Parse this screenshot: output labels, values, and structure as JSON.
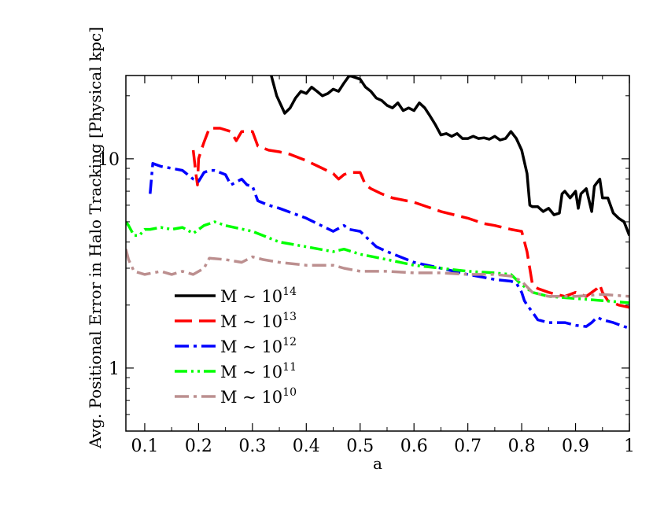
{
  "chart_data": {
    "type": "line",
    "title": "",
    "xlabel": "a",
    "ylabel": "Avg. Positional Error in Halo Tracking [Physical kpc]",
    "xlim": [
      0.065,
      1.0
    ],
    "ylim": [
      0.5,
      25
    ],
    "yscale": "log",
    "grid": false,
    "legend_position": "bottom-left",
    "x_ticks": [
      {
        "value": 0.1,
        "label": "0.1"
      },
      {
        "value": 0.2,
        "label": "0.2"
      },
      {
        "value": 0.3,
        "label": "0.3"
      },
      {
        "value": 0.4,
        "label": "0.4"
      },
      {
        "value": 0.5,
        "label": "0.5"
      },
      {
        "value": 0.6,
        "label": "0.6"
      },
      {
        "value": 0.7,
        "label": "0.7"
      },
      {
        "value": 0.8,
        "label": "0.8"
      },
      {
        "value": 0.9,
        "label": "0.9"
      },
      {
        "value": 1.0,
        "label": "1"
      }
    ],
    "y_ticks": [
      {
        "value": 1,
        "label": "1"
      },
      {
        "value": 10,
        "label": "10"
      }
    ],
    "series": [
      {
        "name_base": "M ~ 10",
        "name_exp": "14",
        "color": "#000000",
        "dash": "solid",
        "points": [
          [
            0.335,
            25
          ],
          [
            0.345,
            20
          ],
          [
            0.36,
            16.5
          ],
          [
            0.37,
            17.5
          ],
          [
            0.38,
            19.5
          ],
          [
            0.39,
            21
          ],
          [
            0.4,
            20.5
          ],
          [
            0.41,
            22
          ],
          [
            0.42,
            21
          ],
          [
            0.43,
            20
          ],
          [
            0.44,
            20.5
          ],
          [
            0.45,
            21.5
          ],
          [
            0.46,
            21
          ],
          [
            0.47,
            23
          ],
          [
            0.48,
            25
          ],
          [
            0.49,
            24.5
          ],
          [
            0.5,
            24
          ],
          [
            0.51,
            22
          ],
          [
            0.52,
            21
          ],
          [
            0.53,
            19.5
          ],
          [
            0.54,
            19
          ],
          [
            0.55,
            18
          ],
          [
            0.56,
            17.5
          ],
          [
            0.57,
            18.5
          ],
          [
            0.58,
            17
          ],
          [
            0.59,
            17.5
          ],
          [
            0.6,
            17
          ],
          [
            0.61,
            18.5
          ],
          [
            0.62,
            17.5
          ],
          [
            0.63,
            16
          ],
          [
            0.64,
            14.5
          ],
          [
            0.65,
            13
          ],
          [
            0.66,
            13.2
          ],
          [
            0.67,
            12.8
          ],
          [
            0.68,
            13.2
          ],
          [
            0.69,
            12.5
          ],
          [
            0.7,
            12.5
          ],
          [
            0.71,
            12.8
          ],
          [
            0.72,
            12.5
          ],
          [
            0.73,
            12.6
          ],
          [
            0.74,
            12.4
          ],
          [
            0.75,
            12.8
          ],
          [
            0.76,
            12.3
          ],
          [
            0.77,
            12.5
          ],
          [
            0.78,
            13.5
          ],
          [
            0.79,
            12.5
          ],
          [
            0.8,
            11
          ],
          [
            0.81,
            8.5
          ],
          [
            0.815,
            6
          ],
          [
            0.82,
            5.9
          ],
          [
            0.83,
            5.9
          ],
          [
            0.84,
            5.6
          ],
          [
            0.85,
            5.8
          ],
          [
            0.86,
            5.4
          ],
          [
            0.87,
            5.5
          ],
          [
            0.875,
            6.8
          ],
          [
            0.88,
            7
          ],
          [
            0.89,
            6.5
          ],
          [
            0.9,
            7
          ],
          [
            0.905,
            5.8
          ],
          [
            0.91,
            6.8
          ],
          [
            0.92,
            7.2
          ],
          [
            0.93,
            5.6
          ],
          [
            0.935,
            7.4
          ],
          [
            0.94,
            7.7
          ],
          [
            0.945,
            8
          ],
          [
            0.95,
            6.5
          ],
          [
            0.96,
            6.5
          ],
          [
            0.97,
            5.5
          ],
          [
            0.98,
            5.2
          ],
          [
            0.99,
            5
          ],
          [
            1.0,
            4.3
          ]
        ]
      },
      {
        "name_base": "M ~ 10",
        "name_exp": "13",
        "color": "#ff0000",
        "dash": "long",
        "points": [
          [
            0.19,
            11
          ],
          [
            0.195,
            8.5
          ],
          [
            0.198,
            7.5
          ],
          [
            0.2,
            10
          ],
          [
            0.205,
            11
          ],
          [
            0.21,
            12
          ],
          [
            0.22,
            14
          ],
          [
            0.24,
            14
          ],
          [
            0.26,
            13.5
          ],
          [
            0.27,
            12.2
          ],
          [
            0.28,
            13.5
          ],
          [
            0.3,
            13.5
          ],
          [
            0.31,
            11.5
          ],
          [
            0.33,
            11
          ],
          [
            0.35,
            10.8
          ],
          [
            0.37,
            10.5
          ],
          [
            0.4,
            9.8
          ],
          [
            0.43,
            9
          ],
          [
            0.45,
            8.5
          ],
          [
            0.46,
            8
          ],
          [
            0.47,
            8.4
          ],
          [
            0.48,
            8.6
          ],
          [
            0.5,
            8.6
          ],
          [
            0.51,
            7.5
          ],
          [
            0.52,
            7.2
          ],
          [
            0.54,
            6.8
          ],
          [
            0.56,
            6.5
          ],
          [
            0.6,
            6.2
          ],
          [
            0.65,
            5.6
          ],
          [
            0.7,
            5.2
          ],
          [
            0.73,
            4.9
          ],
          [
            0.75,
            4.8
          ],
          [
            0.78,
            4.6
          ],
          [
            0.8,
            4.5
          ],
          [
            0.81,
            3.6
          ],
          [
            0.82,
            2.5
          ],
          [
            0.83,
            2.4
          ],
          [
            0.85,
            2.3
          ],
          [
            0.88,
            2.2
          ],
          [
            0.9,
            2.3
          ],
          [
            0.92,
            2.2
          ],
          [
            0.94,
            2.4
          ],
          [
            0.945,
            2.5
          ],
          [
            0.95,
            2.3
          ],
          [
            0.96,
            2.1
          ],
          [
            0.98,
            2
          ],
          [
            1.0,
            1.95
          ]
        ]
      },
      {
        "name_base": "M ~ 10",
        "name_exp": "12",
        "color": "#0000ff",
        "dash": "dashdot",
        "points": [
          [
            0.11,
            6.8
          ],
          [
            0.115,
            9.5
          ],
          [
            0.13,
            9.2
          ],
          [
            0.15,
            9
          ],
          [
            0.17,
            8.8
          ],
          [
            0.19,
            8
          ],
          [
            0.2,
            7.8
          ],
          [
            0.21,
            8.6
          ],
          [
            0.22,
            8.8
          ],
          [
            0.23,
            8.8
          ],
          [
            0.25,
            8.4
          ],
          [
            0.26,
            7.5
          ],
          [
            0.28,
            8
          ],
          [
            0.29,
            7.5
          ],
          [
            0.3,
            7.4
          ],
          [
            0.31,
            6.3
          ],
          [
            0.33,
            6
          ],
          [
            0.35,
            5.8
          ],
          [
            0.4,
            5.2
          ],
          [
            0.45,
            4.5
          ],
          [
            0.47,
            4.8
          ],
          [
            0.48,
            4.6
          ],
          [
            0.5,
            4.5
          ],
          [
            0.53,
            3.8
          ],
          [
            0.55,
            3.6
          ],
          [
            0.6,
            3.2
          ],
          [
            0.65,
            3
          ],
          [
            0.7,
            2.8
          ],
          [
            0.75,
            2.65
          ],
          [
            0.78,
            2.6
          ],
          [
            0.79,
            2.55
          ],
          [
            0.8,
            2.3
          ],
          [
            0.805,
            2.1
          ],
          [
            0.81,
            2.0
          ],
          [
            0.82,
            1.85
          ],
          [
            0.83,
            1.7
          ],
          [
            0.85,
            1.65
          ],
          [
            0.88,
            1.65
          ],
          [
            0.9,
            1.6
          ],
          [
            0.92,
            1.58
          ],
          [
            0.93,
            1.65
          ],
          [
            0.94,
            1.75
          ],
          [
            0.95,
            1.7
          ],
          [
            0.97,
            1.65
          ],
          [
            0.99,
            1.58
          ],
          [
            1.0,
            1.55
          ]
        ]
      },
      {
        "name_base": "M ~ 10",
        "name_exp": "11",
        "color": "#00ff00",
        "dash": "dashdotdot",
        "points": [
          [
            0.065,
            5
          ],
          [
            0.07,
            4.8
          ],
          [
            0.08,
            4.3
          ],
          [
            0.09,
            4.3
          ],
          [
            0.1,
            4.6
          ],
          [
            0.11,
            4.6
          ],
          [
            0.13,
            4.7
          ],
          [
            0.15,
            4.6
          ],
          [
            0.17,
            4.7
          ],
          [
            0.19,
            4.4
          ],
          [
            0.21,
            4.8
          ],
          [
            0.23,
            5
          ],
          [
            0.25,
            4.8
          ],
          [
            0.3,
            4.5
          ],
          [
            0.35,
            4
          ],
          [
            0.4,
            3.8
          ],
          [
            0.45,
            3.6
          ],
          [
            0.47,
            3.7
          ],
          [
            0.5,
            3.5
          ],
          [
            0.55,
            3.3
          ],
          [
            0.6,
            3.1
          ],
          [
            0.65,
            3
          ],
          [
            0.7,
            2.9
          ],
          [
            0.75,
            2.85
          ],
          [
            0.78,
            2.8
          ],
          [
            0.8,
            2.5
          ],
          [
            0.82,
            2.3
          ],
          [
            0.85,
            2.2
          ],
          [
            0.9,
            2.15
          ],
          [
            0.95,
            2.1
          ],
          [
            1.0,
            2.05
          ]
        ]
      },
      {
        "name_base": "M ~ 10",
        "name_exp": "10",
        "color": "#bc8f8f",
        "dash": "dashdot",
        "points": [
          [
            0.065,
            3.7
          ],
          [
            0.07,
            3.3
          ],
          [
            0.08,
            2.9
          ],
          [
            0.1,
            2.8
          ],
          [
            0.13,
            2.9
          ],
          [
            0.15,
            2.8
          ],
          [
            0.17,
            2.9
          ],
          [
            0.19,
            2.8
          ],
          [
            0.21,
            3.0
          ],
          [
            0.22,
            3.35
          ],
          [
            0.25,
            3.3
          ],
          [
            0.28,
            3.2
          ],
          [
            0.3,
            3.4
          ],
          [
            0.32,
            3.3
          ],
          [
            0.35,
            3.2
          ],
          [
            0.4,
            3.1
          ],
          [
            0.45,
            3.1
          ],
          [
            0.47,
            3.0
          ],
          [
            0.5,
            2.9
          ],
          [
            0.55,
            2.9
          ],
          [
            0.6,
            2.85
          ],
          [
            0.65,
            2.85
          ],
          [
            0.7,
            2.8
          ],
          [
            0.75,
            2.8
          ],
          [
            0.78,
            2.75
          ],
          [
            0.8,
            2.6
          ],
          [
            0.82,
            2.3
          ],
          [
            0.85,
            2.2
          ],
          [
            0.9,
            2.2
          ],
          [
            0.95,
            2.25
          ],
          [
            1.0,
            2.2
          ]
        ]
      }
    ]
  }
}
